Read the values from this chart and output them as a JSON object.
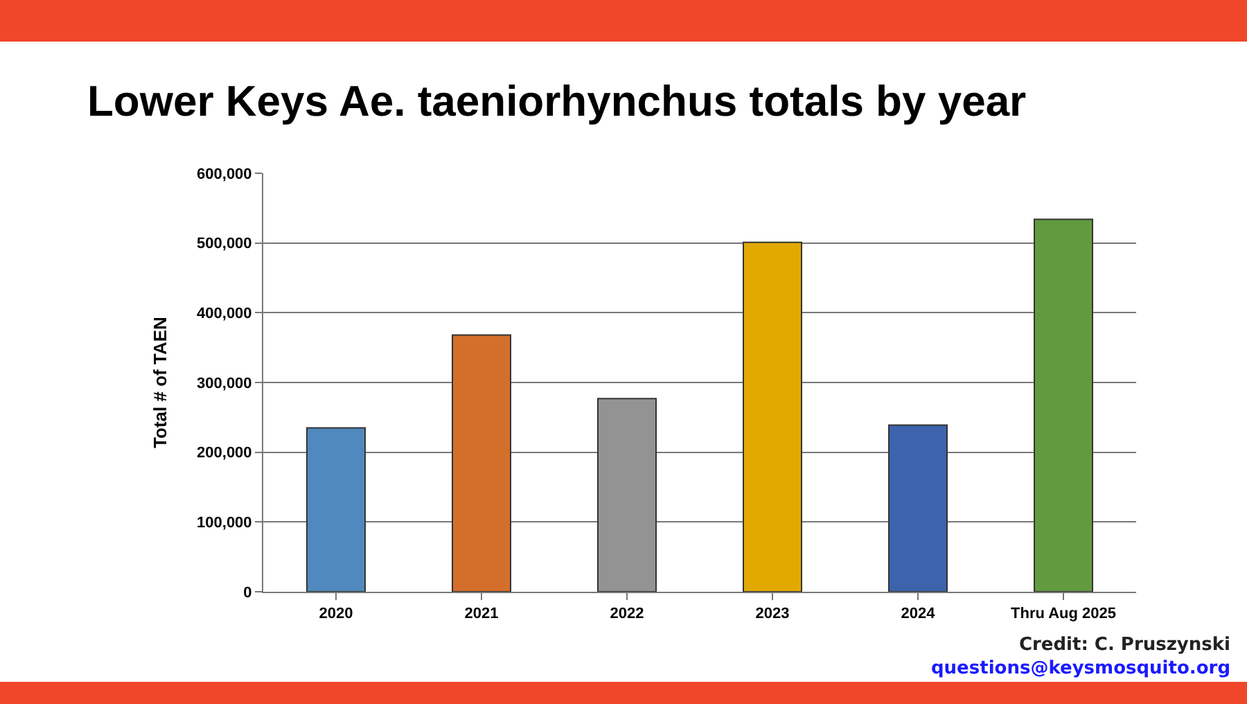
{
  "chart_data": {
    "type": "bar",
    "title": "Lower Keys Ae. taeniorhynchus totals by year",
    "ylabel": "Total # of TAEN",
    "categories": [
      "2020",
      "2021",
      "2022",
      "2023",
      "2024",
      "Thru Aug 2025"
    ],
    "values": [
      235000,
      368000,
      277000,
      501000,
      239000,
      534000
    ],
    "colors": [
      "#4f89bd",
      "#d46e2b",
      "#939393",
      "#e2aa00",
      "#3c63ac",
      "#629a3f"
    ],
    "ylim": [
      0,
      600000
    ],
    "yticks": [
      {
        "value": 0,
        "label": "0"
      },
      {
        "value": 100000,
        "label": "100,000"
      },
      {
        "value": 200000,
        "label": "200,000"
      },
      {
        "value": 300000,
        "label": "300,000"
      },
      {
        "value": 400000,
        "label": "400,000"
      },
      {
        "value": 500000,
        "label": "500,000"
      },
      {
        "value": 600000,
        "label": "600,000"
      }
    ],
    "grid": "y",
    "annotations": [
      "Credit: C. Pruszynski",
      "questions@keysmosquito.org"
    ]
  }
}
